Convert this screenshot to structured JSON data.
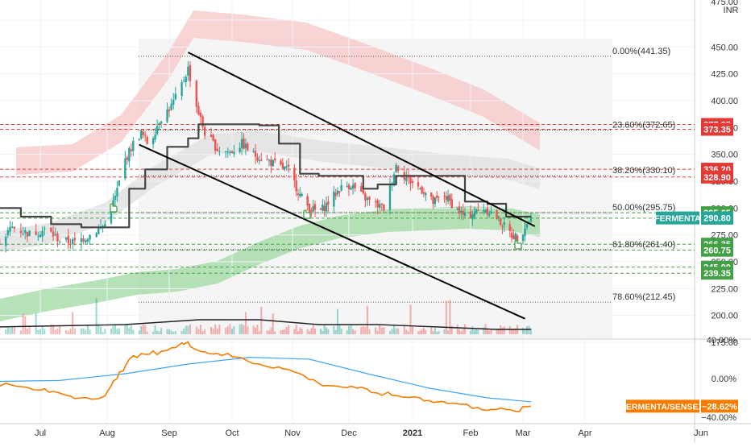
{
  "chart_data": {
    "type": "candlestick",
    "symbol": "FERMENTA",
    "currency": "INR",
    "main_ylim": [
      160,
      475
    ],
    "y_ticks": [
      175,
      200,
      225,
      250,
      275,
      300,
      325,
      350,
      375,
      400,
      425,
      450,
      475
    ],
    "y_tick_labels": [
      "175.00",
      "200.00",
      "225.00",
      "250.00",
      "275.00",
      "300.00",
      "325.00",
      "350.00",
      "375.00",
      "400.00",
      "425.00",
      "450.00",
      "475.00"
    ],
    "x_labels": [
      "Jul",
      "Aug",
      "Sep",
      "Oct",
      "Nov",
      "Dec",
      "2021",
      "Feb",
      "Mar",
      "Apr",
      "Jun"
    ],
    "fibonacci": [
      {
        "label": "0.00%(441.35)",
        "value": 441.35
      },
      {
        "label": "23.60%(372.65)",
        "value": 372.65
      },
      {
        "label": "38.20%(330.10)",
        "value": 330.1
      },
      {
        "label": "50.00%(295.75)",
        "value": 295.75
      },
      {
        "label": "61.80%(261.40)",
        "value": 261.4
      },
      {
        "label": "78.60%(212.45)",
        "value": 212.45
      }
    ],
    "red_levels": [
      {
        "label": "377.85",
        "value": 377.85
      },
      {
        "label": "373.35",
        "value": 373.35
      },
      {
        "label": "336.20",
        "value": 336.2
      },
      {
        "label": "328.90",
        "value": 328.9
      }
    ],
    "green_levels": [
      {
        "label": "295.65",
        "value": 295.65
      },
      {
        "label": "290.60",
        "value": 290.6
      },
      {
        "label": "266.35",
        "value": 266.35
      },
      {
        "label": "260.75",
        "value": 260.75
      },
      {
        "label": "245.00",
        "value": 245.0
      },
      {
        "label": "239.35",
        "value": 239.35
      }
    ],
    "last_price": {
      "symbol": "FERMENTA",
      "label": "290.80",
      "value": 290.8
    },
    "trendlines": [
      {
        "name": "upper-channel",
        "from": [
          "2020-09-10",
          445
        ],
        "to": [
          "2021-03-07",
          283
        ]
      },
      {
        "name": "lower-channel",
        "from": [
          "2020-08-17",
          359
        ],
        "to": [
          "2021-03-02",
          197
        ]
      }
    ],
    "close_series": [
      [
        "2020-06-10",
        265
      ],
      [
        "2020-06-18",
        282
      ],
      [
        "2020-06-26",
        276
      ],
      [
        "2020-07-04",
        280
      ],
      [
        "2020-07-10",
        270
      ],
      [
        "2020-07-17",
        268
      ],
      [
        "2020-07-24",
        275
      ],
      [
        "2020-07-31",
        285
      ],
      [
        "2020-08-05",
        310
      ],
      [
        "2020-08-10",
        345
      ],
      [
        "2020-08-14",
        360
      ],
      [
        "2020-08-18",
        370
      ],
      [
        "2020-08-22",
        358
      ],
      [
        "2020-08-27",
        382
      ],
      [
        "2020-09-02",
        395
      ],
      [
        "2020-09-06",
        410
      ],
      [
        "2020-09-10",
        430
      ],
      [
        "2020-09-14",
        395
      ],
      [
        "2020-09-18",
        370
      ],
      [
        "2020-09-24",
        355
      ],
      [
        "2020-09-30",
        352
      ],
      [
        "2020-10-06",
        360
      ],
      [
        "2020-10-12",
        350
      ],
      [
        "2020-10-18",
        345
      ],
      [
        "2020-10-24",
        340
      ],
      [
        "2020-10-30",
        335
      ],
      [
        "2020-11-05",
        312
      ],
      [
        "2020-11-10",
        300
      ],
      [
        "2020-11-15",
        296
      ],
      [
        "2020-11-20",
        305
      ],
      [
        "2020-11-26",
        318
      ],
      [
        "2020-12-02",
        322
      ],
      [
        "2020-12-07",
        312
      ],
      [
        "2020-12-12",
        305
      ],
      [
        "2020-12-18",
        300
      ],
      [
        "2020-12-24",
        340
      ],
      [
        "2020-12-28",
        330
      ],
      [
        "2021-01-02",
        322
      ],
      [
        "2021-01-07",
        316
      ],
      [
        "2021-01-12",
        305
      ],
      [
        "2021-01-18",
        312
      ],
      [
        "2021-01-24",
        300
      ],
      [
        "2021-01-29",
        292
      ],
      [
        "2021-02-03",
        296
      ],
      [
        "2021-02-08",
        300
      ],
      [
        "2021-02-13",
        295
      ],
      [
        "2021-02-18",
        285
      ],
      [
        "2021-02-23",
        275
      ],
      [
        "2021-02-27",
        272
      ],
      [
        "2021-03-02",
        283
      ],
      [
        "2021-03-05",
        290.8
      ]
    ],
    "volume_line": [
      [
        "2020-06-10",
        171
      ],
      [
        "2020-08-10",
        172
      ],
      [
        "2020-09-15",
        174
      ],
      [
        "2020-10-15",
        174
      ],
      [
        "2020-11-15",
        172
      ],
      [
        "2020-12-15",
        172
      ],
      [
        "2021-01-15",
        171
      ],
      [
        "2021-02-15",
        170
      ],
      [
        "2021-03-05",
        170
      ]
    ],
    "comparison": {
      "label": "FERMENTA/SENSEX",
      "value_label": "−28.62%",
      "ylim": [
        -42,
        43
      ],
      "ticks": [
        40,
        0,
        -40
      ],
      "tick_labels": [
        "40.00%",
        "0.00%",
        "−40.00%"
      ],
      "ratio_series": [
        [
          "2020-06-10",
          -5
        ],
        [
          "2020-06-20",
          -8
        ],
        [
          "2020-07-01",
          -12
        ],
        [
          "2020-07-10",
          -15
        ],
        [
          "2020-07-20",
          -20
        ],
        [
          "2020-07-31",
          -18
        ],
        [
          "2020-08-06",
          0
        ],
        [
          "2020-08-12",
          20
        ],
        [
          "2020-08-20",
          25
        ],
        [
          "2020-08-28",
          28
        ],
        [
          "2020-09-04",
          32
        ],
        [
          "2020-09-10",
          38
        ],
        [
          "2020-09-16",
          28
        ],
        [
          "2020-09-24",
          26
        ],
        [
          "2020-10-04",
          22
        ],
        [
          "2020-10-15",
          15
        ],
        [
          "2020-10-25",
          12
        ],
        [
          "2020-11-05",
          5
        ],
        [
          "2020-11-15",
          -5
        ],
        [
          "2020-11-25",
          -8
        ],
        [
          "2020-12-05",
          -10
        ],
        [
          "2020-12-15",
          -15
        ],
        [
          "2020-12-25",
          -18
        ],
        [
          "2021-01-05",
          -20
        ],
        [
          "2021-01-15",
          -24
        ],
        [
          "2021-01-25",
          -26
        ],
        [
          "2021-02-05",
          -30
        ],
        [
          "2021-02-15",
          -32
        ],
        [
          "2021-02-25",
          -34
        ],
        [
          "2021-03-05",
          -28.62
        ]
      ],
      "ma_series": [
        [
          "2020-06-10",
          -3
        ],
        [
          "2020-07-10",
          -2
        ],
        [
          "2020-08-10",
          5
        ],
        [
          "2020-09-10",
          15
        ],
        [
          "2020-10-10",
          22
        ],
        [
          "2020-11-10",
          20
        ],
        [
          "2020-12-10",
          5
        ],
        [
          "2021-01-10",
          -10
        ],
        [
          "2021-02-10",
          -20
        ],
        [
          "2021-03-05",
          -24
        ]
      ]
    }
  },
  "colors": {
    "up": "#26a69a",
    "down": "#ef5350",
    "price_line": "#222222",
    "fib_line": "#555555",
    "red_band": "#f7c6c6",
    "gray_band": "#e3e3e3",
    "green_band": "#9fd89f",
    "comparison_orange": "#f57c00",
    "comparison_blue": "#42a5f5",
    "red_level": "#e53935",
    "green_level": "#43a047",
    "fermenta_badge": "#26a69a",
    "sensex_badge": "#f57c00"
  }
}
